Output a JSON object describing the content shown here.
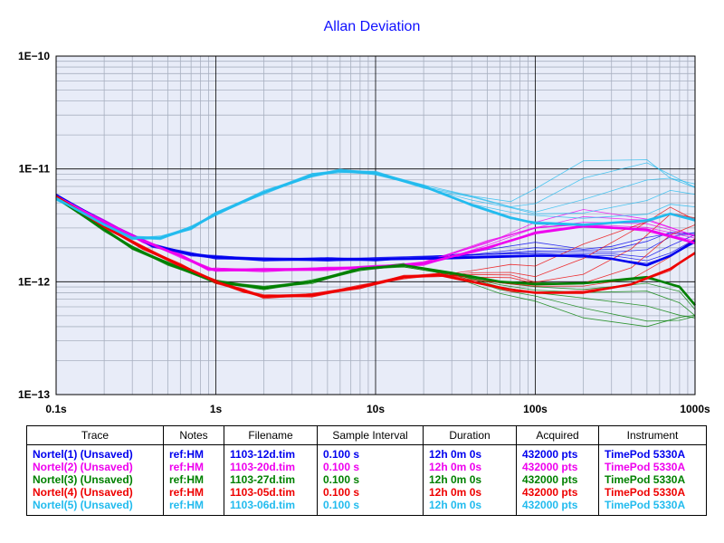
{
  "chart_data": {
    "type": "line",
    "title": "Allan Deviation",
    "title_color": "#1010ff",
    "x_scale": "log",
    "y_scale": "log",
    "xlim": [
      0.1,
      1000
    ],
    "ylim": [
      1e-13,
      1e-10
    ],
    "x_ticks": [
      {
        "value": 0.1,
        "label": "0.1s"
      },
      {
        "value": 1,
        "label": "1s"
      },
      {
        "value": 10,
        "label": "10s"
      },
      {
        "value": 100,
        "label": "100s"
      },
      {
        "value": 1000,
        "label": "1000s"
      }
    ],
    "y_ticks": [
      {
        "value": 1e-10,
        "label": "1E−10"
      },
      {
        "value": 1e-11,
        "label": "1E−11"
      },
      {
        "value": 1e-12,
        "label": "1E−12"
      },
      {
        "value": 1e-13,
        "label": "1E−13"
      }
    ],
    "grid": true,
    "plot_background": "#e8ecf8",
    "series": [
      {
        "name": "Nortel(1) (Unsaved)",
        "color": "#0000ee",
        "points": [
          [
            0.1,
            5.8e-12
          ],
          [
            0.2,
            3.4e-12
          ],
          [
            0.4,
            2.1e-12
          ],
          [
            0.7,
            1.75e-12
          ],
          [
            1,
            1.65e-12
          ],
          [
            2,
            1.58e-12
          ],
          [
            5,
            1.58e-12
          ],
          [
            10,
            1.58e-12
          ],
          [
            30,
            1.62e-12
          ],
          [
            100,
            1.7e-12
          ],
          [
            200,
            1.7e-12
          ],
          [
            300,
            1.6e-12
          ],
          [
            500,
            1.4e-12
          ],
          [
            700,
            1.7e-12
          ],
          [
            1000,
            2.3e-12
          ]
        ],
        "spread_points": [
          [
            50,
            1.8e-12
          ],
          [
            100,
            2.2e-12
          ],
          [
            200,
            1.9e-12
          ],
          [
            400,
            2e-12
          ],
          [
            700,
            2.3e-12
          ],
          [
            1000,
            2.8e-12
          ]
        ]
      },
      {
        "name": "Nortel(2) (Unsaved)",
        "color": "#ee00ee",
        "points": [
          [
            0.1,
            5.7e-12
          ],
          [
            0.2,
            3.4e-12
          ],
          [
            0.35,
            2.3e-12
          ],
          [
            0.6,
            1.7e-12
          ],
          [
            0.9,
            1.3e-12
          ],
          [
            1,
            1.28e-12
          ],
          [
            2,
            1.27e-12
          ],
          [
            5,
            1.3e-12
          ],
          [
            10,
            1.35e-12
          ],
          [
            20,
            1.45e-12
          ],
          [
            50,
            2e-12
          ],
          [
            100,
            2.7e-12
          ],
          [
            200,
            3.1e-12
          ],
          [
            500,
            2.9e-12
          ],
          [
            1000,
            2.2e-12
          ]
        ],
        "spread_points": [
          [
            50,
            2.4e-12
          ],
          [
            100,
            3.5e-12
          ],
          [
            200,
            4e-12
          ],
          [
            500,
            3.4e-12
          ],
          [
            1000,
            2.6e-12
          ]
        ]
      },
      {
        "name": "Nortel(3) (Unsaved)",
        "color": "#008000",
        "points": [
          [
            0.1,
            5.6e-12
          ],
          [
            0.2,
            2.9e-12
          ],
          [
            0.3,
            2e-12
          ],
          [
            0.5,
            1.45e-12
          ],
          [
            1,
            1e-12
          ],
          [
            2,
            8.8e-13
          ],
          [
            4,
            1e-12
          ],
          [
            8,
            1.3e-12
          ],
          [
            15,
            1.4e-12
          ],
          [
            30,
            1.2e-12
          ],
          [
            60,
            1e-12
          ],
          [
            100,
            9.5e-13
          ],
          [
            200,
            9.7e-13
          ],
          [
            500,
            1.1e-12
          ],
          [
            800,
            9e-13
          ],
          [
            1000,
            6.2e-13
          ]
        ],
        "spread_points": [
          [
            50,
            1.1e-12
          ],
          [
            100,
            8e-13
          ],
          [
            200,
            7e-13
          ],
          [
            500,
            5.5e-13
          ],
          [
            800,
            4.6e-13
          ],
          [
            1000,
            4.4e-13
          ]
        ]
      },
      {
        "name": "Nortel(4) (Unsaved)",
        "color": "#ee0000",
        "points": [
          [
            0.1,
            5.7e-12
          ],
          [
            0.2,
            3.1e-12
          ],
          [
            0.35,
            2e-12
          ],
          [
            0.6,
            1.4e-12
          ],
          [
            1,
            1e-12
          ],
          [
            1.5,
            8.3e-13
          ],
          [
            2,
            7.4e-13
          ],
          [
            4,
            7.6e-13
          ],
          [
            8,
            9e-13
          ],
          [
            15,
            1.1e-12
          ],
          [
            25,
            1.15e-12
          ],
          [
            40,
            1e-12
          ],
          [
            70,
            8.5e-13
          ],
          [
            100,
            8e-13
          ],
          [
            200,
            8e-13
          ],
          [
            400,
            9.5e-13
          ],
          [
            700,
            1.3e-12
          ],
          [
            1000,
            1.8e-12
          ]
        ],
        "spread_points": [
          [
            50,
            1.3e-12
          ],
          [
            100,
            1.5e-12
          ],
          [
            200,
            1.3e-12
          ],
          [
            400,
            1.7e-12
          ],
          [
            700,
            2.6e-12
          ],
          [
            1000,
            5.2e-12
          ]
        ]
      },
      {
        "name": "Nortel(5) (Unsaved)",
        "color": "#22bbee",
        "points": [
          [
            0.1,
            5.5e-12
          ],
          [
            0.2,
            3.2e-12
          ],
          [
            0.3,
            2.45e-12
          ],
          [
            0.45,
            2.45e-12
          ],
          [
            0.7,
            3e-12
          ],
          [
            1,
            4e-12
          ],
          [
            2,
            6.2e-12
          ],
          [
            4,
            8.8e-12
          ],
          [
            6,
            9.6e-12
          ],
          [
            10,
            9.2e-12
          ],
          [
            20,
            7e-12
          ],
          [
            40,
            4.8e-12
          ],
          [
            70,
            3.7e-12
          ],
          [
            100,
            3.3e-12
          ],
          [
            200,
            3.2e-12
          ],
          [
            500,
            3.5e-12
          ],
          [
            700,
            4e-12
          ],
          [
            1000,
            3.5e-12
          ]
        ],
        "spread_points": [
          [
            40,
            6e-12
          ],
          [
            100,
            5.5e-12
          ],
          [
            200,
            6e-12
          ],
          [
            400,
            8.5e-12
          ],
          [
            700,
            1.05e-11
          ],
          [
            1000,
            1e-11
          ]
        ]
      }
    ]
  },
  "legend": {
    "headers": [
      "Trace",
      "Notes",
      "Filename",
      "Sample Interval",
      "Duration",
      "Acquired",
      "Instrument"
    ],
    "rows": [
      {
        "color": "#0000ee",
        "cells": [
          "Nortel(1) (Unsaved)",
          "ref:HM",
          "1103-12d.tim",
          "0.100 s",
          "12h 0m 0s",
          "432000 pts",
          "TimePod 5330A"
        ]
      },
      {
        "color": "#ee00ee",
        "cells": [
          "Nortel(2) (Unsaved)",
          "ref:HM",
          "1103-20d.tim",
          "0.100 s",
          "12h 0m 0s",
          "432000 pts",
          "TimePod 5330A"
        ]
      },
      {
        "color": "#008000",
        "cells": [
          "Nortel(3) (Unsaved)",
          "ref:HM",
          "1103-27d.tim",
          "0.100 s",
          "12h 0m 0s",
          "432000 pts",
          "TimePod 5330A"
        ]
      },
      {
        "color": "#ee0000",
        "cells": [
          "Nortel(4) (Unsaved)",
          "ref:HM",
          "1103-05d.tim",
          "0.100 s",
          "12h 0m 0s",
          "432000 pts",
          "TimePod 5330A"
        ]
      },
      {
        "color": "#22bbee",
        "cells": [
          "Nortel(5) (Unsaved)",
          "ref:HM",
          "1103-06d.tim",
          "0.100 s",
          "12h 0m 0s",
          "432000 pts",
          "TimePod 5330A"
        ]
      }
    ]
  }
}
